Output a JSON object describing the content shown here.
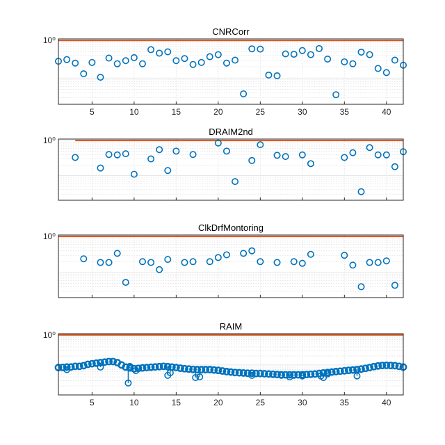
{
  "colors": {
    "marker": "#0072BD",
    "threshold": "#D95319",
    "axis": "#262626",
    "grid": "#dfdfdf"
  },
  "x_ticks": [
    "5",
    "10",
    "15",
    "20",
    "25",
    "30",
    "35",
    "40"
  ],
  "chart_data": [
    {
      "type": "scatter",
      "title": "CNRCorr",
      "xlim": [
        1,
        42
      ],
      "y_scale": "log",
      "ylim": [
        0.02,
        1.1
      ],
      "y_tick_label": "10⁰",
      "y_tick_value": 1,
      "grid": true,
      "threshold": {
        "x": [
          1,
          42
        ],
        "y": 1
      },
      "points": [
        [
          1,
          0.28
        ],
        [
          2,
          0.31
        ],
        [
          3,
          0.25
        ],
        [
          4,
          0.13
        ],
        [
          5,
          0.26
        ],
        [
          6,
          0.105
        ],
        [
          7,
          0.34
        ],
        [
          8,
          0.24
        ],
        [
          9,
          0.29
        ],
        [
          10,
          0.35
        ],
        [
          11,
          0.24
        ],
        [
          12,
          0.57
        ],
        [
          13,
          0.46
        ],
        [
          14,
          0.5
        ],
        [
          15,
          0.29
        ],
        [
          16,
          0.33
        ],
        [
          17,
          0.23
        ],
        [
          18,
          0.26
        ],
        [
          19,
          0.37
        ],
        [
          20,
          0.42
        ],
        [
          21,
          0.25
        ],
        [
          22,
          0.3
        ],
        [
          23,
          0.038
        ],
        [
          24,
          0.6
        ],
        [
          25,
          0.59
        ],
        [
          26,
          0.12
        ],
        [
          27,
          0.115
        ],
        [
          28,
          0.44
        ],
        [
          29,
          0.43
        ],
        [
          30,
          0.54
        ],
        [
          31,
          0.42
        ],
        [
          32,
          0.61
        ],
        [
          33,
          0.32
        ],
        [
          34,
          0.036
        ],
        [
          35,
          0.27
        ],
        [
          36,
          0.24
        ],
        [
          37,
          0.49
        ],
        [
          38,
          0.42
        ],
        [
          39,
          0.18
        ],
        [
          40,
          0.14
        ],
        [
          41,
          0.3
        ],
        [
          42,
          0.22
        ]
      ]
    },
    {
      "type": "scatter",
      "title": "DRAIM2nd",
      "xlim": [
        1,
        42
      ],
      "y_scale": "log",
      "ylim": [
        0.02,
        1.1
      ],
      "y_tick_label": "10⁰",
      "y_tick_value": 1,
      "grid": true,
      "threshold": {
        "x": [
          3,
          42
        ],
        "y": 1
      },
      "points": [
        [
          3,
          0.33
        ],
        [
          6,
          0.165
        ],
        [
          7,
          0.4
        ],
        [
          8,
          0.39
        ],
        [
          9,
          0.42
        ],
        [
          10,
          0.11
        ],
        [
          12,
          0.3
        ],
        [
          13,
          0.55
        ],
        [
          14,
          0.14
        ],
        [
          15,
          0.5
        ],
        [
          17,
          0.4
        ],
        [
          20,
          0.85
        ],
        [
          21,
          0.5
        ],
        [
          22,
          0.068
        ],
        [
          24,
          0.27
        ],
        [
          25,
          0.76
        ],
        [
          27,
          0.38
        ],
        [
          28,
          0.35
        ],
        [
          30,
          0.39
        ],
        [
          31,
          0.22
        ],
        [
          35,
          0.33
        ],
        [
          36,
          0.45
        ],
        [
          37,
          0.035
        ],
        [
          38,
          0.63
        ],
        [
          39,
          0.39
        ],
        [
          40,
          0.39
        ],
        [
          41,
          0.18
        ],
        [
          42,
          0.48
        ]
      ]
    },
    {
      "type": "scatter",
      "title": "ClkDrfMontoring",
      "xlim": [
        1,
        42
      ],
      "y_scale": "log",
      "ylim": [
        0.02,
        1.1
      ],
      "y_tick_label": "10⁰",
      "y_tick_value": 1,
      "grid": true,
      "threshold": {
        "x": [
          1,
          42
        ],
        "y": 1
      },
      "points": [
        [
          4,
          0.24
        ],
        [
          6,
          0.19
        ],
        [
          7,
          0.19
        ],
        [
          8,
          0.34
        ],
        [
          9,
          0.053
        ],
        [
          11,
          0.2
        ],
        [
          12,
          0.19
        ],
        [
          13,
          0.12
        ],
        [
          14,
          0.23
        ],
        [
          16,
          0.19
        ],
        [
          17,
          0.2
        ],
        [
          19,
          0.2
        ],
        [
          20,
          0.26
        ],
        [
          21,
          0.31
        ],
        [
          23,
          0.34
        ],
        [
          24,
          0.4
        ],
        [
          25,
          0.2
        ],
        [
          27,
          0.19
        ],
        [
          29,
          0.2
        ],
        [
          30,
          0.18
        ],
        [
          31,
          0.32
        ],
        [
          35,
          0.3
        ],
        [
          36,
          0.16
        ],
        [
          37,
          0.04
        ],
        [
          38,
          0.19
        ],
        [
          39,
          0.19
        ],
        [
          40,
          0.21
        ],
        [
          41,
          0.044
        ]
      ]
    },
    {
      "type": "scatter",
      "title": "RAIM",
      "xlim": [
        1,
        42
      ],
      "y_scale": "log",
      "ylim": [
        0.01,
        1.1
      ],
      "y_tick_label": "10⁰",
      "y_tick_value": 1,
      "grid": true,
      "threshold": {
        "x": [
          1,
          42
        ],
        "y": 1
      },
      "trend": [
        [
          1,
          0.082
        ],
        [
          1.5,
          0.083
        ],
        [
          2,
          0.085
        ],
        [
          2.5,
          0.086
        ],
        [
          3,
          0.09
        ],
        [
          3.5,
          0.09
        ],
        [
          4,
          0.095
        ],
        [
          4.5,
          0.105
        ],
        [
          5,
          0.11
        ],
        [
          5.5,
          0.115
        ],
        [
          6,
          0.12
        ],
        [
          6.5,
          0.125
        ],
        [
          7,
          0.13
        ],
        [
          7.5,
          0.13
        ],
        [
          8,
          0.12
        ],
        [
          8.5,
          0.1
        ],
        [
          9,
          0.085
        ],
        [
          9.5,
          0.08
        ],
        [
          10,
          0.075
        ],
        [
          10.5,
          0.077
        ],
        [
          11,
          0.08
        ],
        [
          11.5,
          0.082
        ],
        [
          12,
          0.084
        ],
        [
          12.5,
          0.086
        ],
        [
          13,
          0.088
        ],
        [
          13.5,
          0.09
        ],
        [
          14,
          0.088
        ],
        [
          14.5,
          0.085
        ],
        [
          15,
          0.082
        ],
        [
          15.5,
          0.078
        ],
        [
          16,
          0.075
        ],
        [
          16.5,
          0.073
        ],
        [
          17,
          0.071
        ],
        [
          17.5,
          0.07
        ],
        [
          18,
          0.07
        ],
        [
          18.5,
          0.07
        ],
        [
          19,
          0.07
        ],
        [
          19.5,
          0.068
        ],
        [
          20,
          0.066
        ],
        [
          20.5,
          0.063
        ],
        [
          21,
          0.06
        ],
        [
          21.5,
          0.058
        ],
        [
          22,
          0.056
        ],
        [
          22.5,
          0.055
        ],
        [
          23,
          0.054
        ],
        [
          23.5,
          0.053
        ],
        [
          24,
          0.053
        ],
        [
          24.5,
          0.052
        ],
        [
          25,
          0.052
        ],
        [
          25.5,
          0.051
        ],
        [
          26,
          0.05
        ],
        [
          26.5,
          0.049
        ],
        [
          27,
          0.048
        ],
        [
          27.5,
          0.047
        ],
        [
          28,
          0.047
        ],
        [
          28.5,
          0.047
        ],
        [
          29,
          0.047
        ],
        [
          29.5,
          0.047
        ],
        [
          30,
          0.047
        ],
        [
          30.5,
          0.048
        ],
        [
          31,
          0.049
        ],
        [
          31.5,
          0.05
        ],
        [
          32,
          0.052
        ],
        [
          32.5,
          0.054
        ],
        [
          33,
          0.056
        ],
        [
          33.5,
          0.058
        ],
        [
          34,
          0.06
        ],
        [
          34.5,
          0.062
        ],
        [
          35,
          0.064
        ],
        [
          35.5,
          0.066
        ],
        [
          36,
          0.068
        ],
        [
          36.5,
          0.07
        ],
        [
          37,
          0.073
        ],
        [
          37.5,
          0.077
        ],
        [
          38,
          0.082
        ],
        [
          38.5,
          0.088
        ],
        [
          39,
          0.093
        ],
        [
          39.5,
          0.096
        ],
        [
          40,
          0.097
        ],
        [
          40.5,
          0.096
        ],
        [
          41,
          0.095
        ],
        [
          41.5,
          0.09
        ],
        [
          42,
          0.085
        ]
      ],
      "outliers": [
        [
          2,
          0.07
        ],
        [
          5,
          0.11
        ],
        [
          6,
          0.085
        ],
        [
          7.5,
          0.13
        ],
        [
          9.3,
          0.025
        ],
        [
          9.5,
          0.09
        ],
        [
          10.2,
          0.065
        ],
        [
          14,
          0.045
        ],
        [
          14.3,
          0.055
        ],
        [
          17.3,
          0.038
        ],
        [
          17.8,
          0.04
        ],
        [
          24,
          0.045
        ],
        [
          27.5,
          0.045
        ],
        [
          28.5,
          0.04
        ],
        [
          29,
          0.045
        ],
        [
          30,
          0.043
        ],
        [
          32.2,
          0.043
        ],
        [
          32.5,
          0.038
        ],
        [
          33,
          0.05
        ],
        [
          36.5,
          0.043
        ]
      ]
    }
  ]
}
